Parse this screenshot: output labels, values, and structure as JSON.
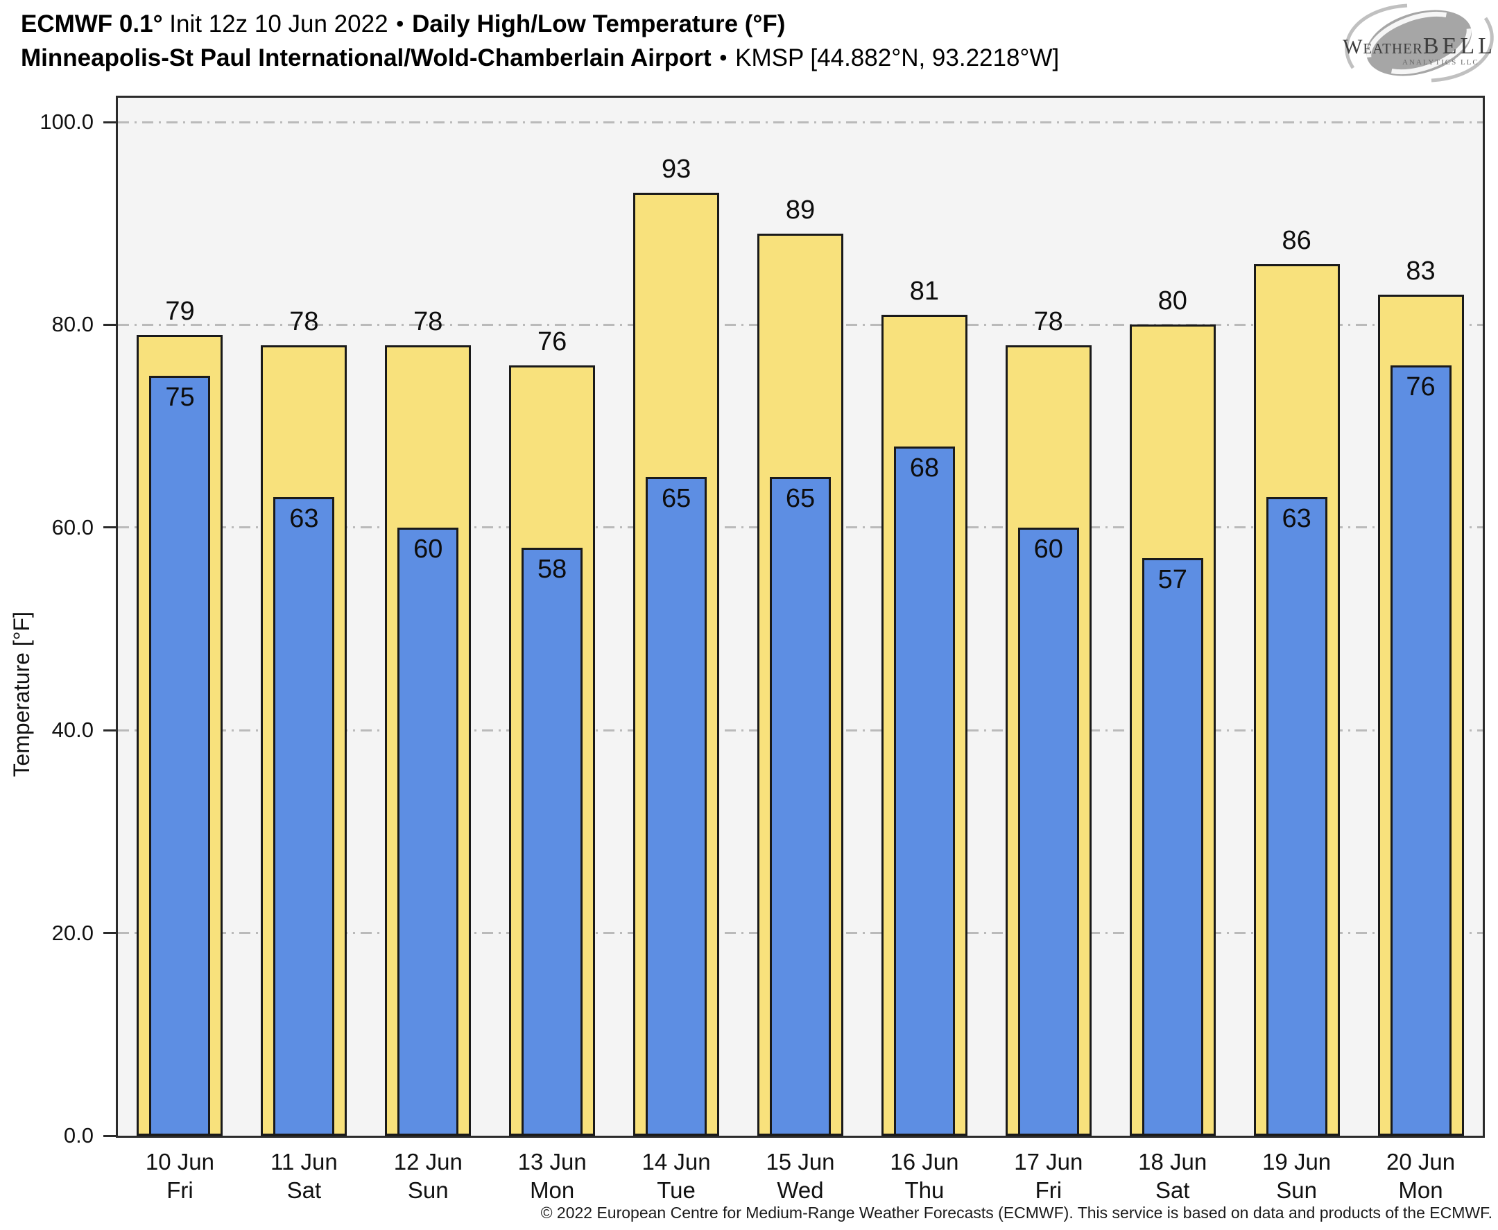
{
  "header": {
    "line1": {
      "model": "ECMWF 0.1°",
      "init": " Init 12z 10 Jun 2022",
      "sep": "•",
      "metric": "Daily High/Low Temperature (°F)"
    },
    "line2": {
      "station": "Minneapolis-St Paul International/Wold-Chamberlain Airport",
      "sep": "•",
      "id_coords": "KMSP [44.882°N, 93.2218°W]"
    }
  },
  "logo": {
    "word_main": "Weather",
    "word_accent": "BELL",
    "tagline": "ANALYTICS LLC"
  },
  "chart_data": {
    "type": "bar",
    "title": "ECMWF 0.1° Init 12z 10 Jun 2022 — Daily High/Low Temperature (°F) — Minneapolis-St Paul International/Wold-Chamberlain Airport KMSP",
    "xlabel": "",
    "ylabel": "Temperature [°F]",
    "ylim": [
      0,
      102.4
    ],
    "yticks": [
      0,
      20,
      40,
      60,
      80,
      100
    ],
    "ytick_labels": [
      "0.0",
      "20.0",
      "40.0",
      "60.0",
      "80.0",
      "100.0"
    ],
    "grid": "horizontal dash-dot gridlines at 20°F intervals",
    "legend_position": "none",
    "categories": [
      {
        "date": "10 Jun",
        "day": "Fri"
      },
      {
        "date": "11 Jun",
        "day": "Sat"
      },
      {
        "date": "12 Jun",
        "day": "Sun"
      },
      {
        "date": "13 Jun",
        "day": "Mon"
      },
      {
        "date": "14 Jun",
        "day": "Tue"
      },
      {
        "date": "15 Jun",
        "day": "Wed"
      },
      {
        "date": "16 Jun",
        "day": "Thu"
      },
      {
        "date": "17 Jun",
        "day": "Fri"
      },
      {
        "date": "18 Jun",
        "day": "Sat"
      },
      {
        "date": "19 Jun",
        "day": "Sun"
      },
      {
        "date": "20 Jun",
        "day": "Mon"
      }
    ],
    "series": [
      {
        "name": "Daily High",
        "color": "#f8e17c",
        "values": [
          79,
          78,
          78,
          76,
          93,
          89,
          81,
          78,
          80,
          86,
          83
        ]
      },
      {
        "name": "Daily Low",
        "color": "#5d8ee3",
        "values": [
          75,
          63,
          60,
          58,
          65,
          65,
          68,
          60,
          57,
          63,
          76
        ]
      }
    ]
  },
  "footer": {
    "copyright": "© 2022 European Centre for Medium-Range Weather Forecasts (ECMWF). This service is based on data and products of the ECMWF."
  }
}
